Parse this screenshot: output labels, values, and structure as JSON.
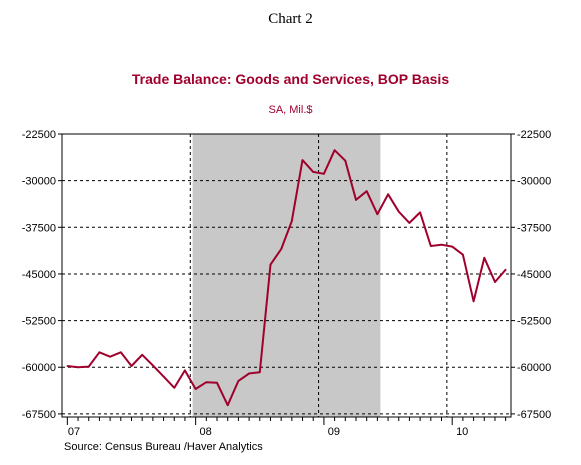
{
  "heading": "Chart 2",
  "source": "Source:  Census Bureau /Haver Analytics",
  "colors": {
    "series": "#a0002c",
    "recession": "#c8c8c8",
    "title": "#a0002c"
  },
  "chart_data": {
    "type": "line",
    "title": "Trade Balance:  Goods and Services, BOP Basis",
    "subtitle": "SA, Mil.$",
    "xlabel": "",
    "ylabel": "",
    "ylim": [
      -68000,
      -22500
    ],
    "yticks": [
      -22500,
      -30000,
      -37500,
      -45000,
      -52500,
      -60000,
      -67500
    ],
    "ytick_labels": [
      "-22500",
      "-30000",
      "-37500",
      "-45000",
      "-52500",
      "-60000",
      "-67500"
    ],
    "x_tick_labels": [
      "07",
      "08",
      "09",
      "10"
    ],
    "x_range": [
      "2007-01",
      "2010-06"
    ],
    "grid": true,
    "recession_shading": {
      "start": "2008-01",
      "end": "2009-06"
    },
    "series": [
      {
        "x": [
          "2007-01",
          "2007-02",
          "2007-03",
          "2007-04",
          "2007-05",
          "2007-06",
          "2007-07",
          "2007-08",
          "2007-09",
          "2007-10",
          "2007-11",
          "2007-12",
          "2008-01",
          "2008-02",
          "2008-03",
          "2008-04",
          "2008-05",
          "2008-06",
          "2008-07",
          "2008-08",
          "2008-09",
          "2008-10",
          "2008-11",
          "2008-12",
          "2009-01",
          "2009-02",
          "2009-03",
          "2009-04",
          "2009-05",
          "2009-06",
          "2009-07",
          "2009-08",
          "2009-09",
          "2009-10",
          "2009-11",
          "2009-12",
          "2010-01",
          "2010-02",
          "2010-03",
          "2010-04",
          "2010-05",
          "2010-06"
        ],
        "values": [
          -59800,
          -60000,
          -59900,
          -57600,
          -58300,
          -57600,
          -59800,
          -58000,
          -59700,
          -61500,
          -63300,
          -60500,
          -63500,
          -62400,
          -62500,
          -66100,
          -62200,
          -61000,
          -60800,
          -43500,
          -41000,
          -36500,
          -26700,
          -28600,
          -28900,
          -25100,
          -26800,
          -33100,
          -31700,
          -35400,
          -32200,
          -35000,
          -36800,
          -35100,
          -40500,
          -40300,
          -40600,
          -41900,
          -49400,
          -42400,
          -46300,
          -44300
        ]
      }
    ]
  }
}
